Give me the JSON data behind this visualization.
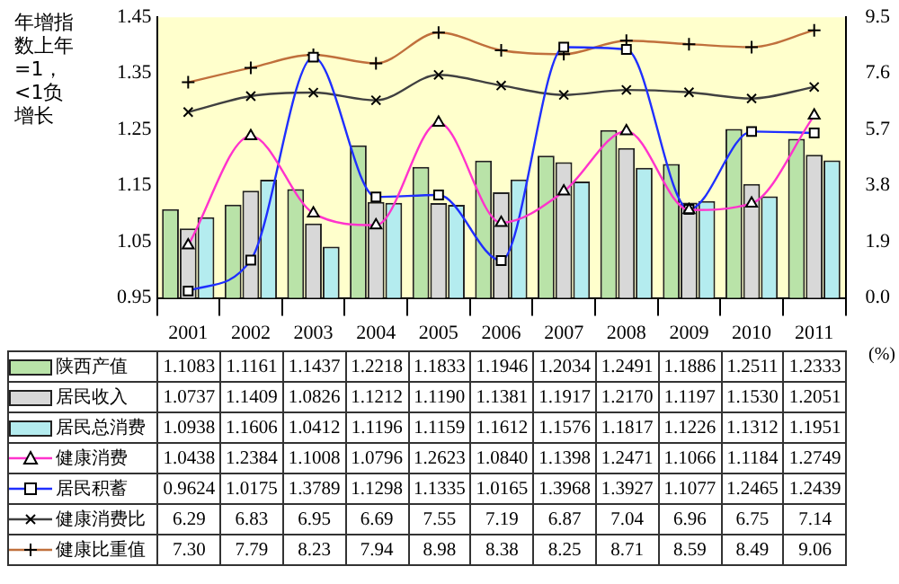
{
  "chart_data": {
    "type": "bar",
    "ylabel": "年增指数上年=1，<1负增长",
    "y2label": "(%)",
    "categories": [
      "2001",
      "2002",
      "2003",
      "2004",
      "2005",
      "2006",
      "2007",
      "2008",
      "2009",
      "2010",
      "2011"
    ],
    "ylim": [
      0.95,
      1.45
    ],
    "yticks": [
      0.95,
      1.05,
      1.15,
      1.25,
      1.35,
      1.45
    ],
    "y2lim": [
      0,
      9.5
    ],
    "y2ticks": [
      {
        "value": 0,
        "label": "0.0"
      },
      1.9,
      3.8,
      5.7,
      7.6,
      9.5
    ],
    "legend": "bottom",
    "series": [
      {
        "name": "陕西产值",
        "color": "#b9e3a8",
        "values": [
          1.1083,
          1.1161,
          1.1437,
          1.2218,
          1.1833,
          1.1946,
          1.2034,
          1.2491,
          1.1886,
          1.2511,
          1.2333
        ],
        "value_labels": [
          "1.1083",
          "1.1161",
          "1.1437",
          "1.2218",
          "1.1833",
          "1.1946",
          "1.2034",
          "1.2491",
          "1.1886",
          "1.2511",
          "1.2333"
        ]
      },
      {
        "name": "居民收入",
        "color": "#d8d8d8",
        "values": [
          1.0737,
          1.1409,
          1.0826,
          1.1212,
          1.119,
          1.1381,
          1.1917,
          1.217,
          1.1197,
          1.153,
          1.2051
        ],
        "value_labels": [
          "1.0737",
          "1.1409",
          "1.0826",
          "1.1212",
          "1.1190",
          "1.1381",
          "1.1917",
          "1.2170",
          "1.1197",
          "1.1530",
          "1.2051"
        ]
      },
      {
        "name": "居民总消费",
        "color": "#b4ecef",
        "values": [
          1.0938,
          1.1606,
          1.0412,
          1.1196,
          1.1159,
          1.1612,
          1.1576,
          1.1817,
          1.1226,
          1.1312,
          1.1951
        ],
        "value_labels": [
          "1.0938",
          "1.1606",
          "1.0412",
          "1.1196",
          "1.1159",
          "1.1612",
          "1.1576",
          "1.1817",
          "1.1226",
          "1.1312",
          "1.1951"
        ]
      },
      {
        "name": "健康消费",
        "type": "line",
        "marker": "triangle",
        "color": "#ff33cc",
        "values": [
          1.0438,
          1.2384,
          1.1008,
          1.0796,
          1.2623,
          1.084,
          1.1398,
          1.2471,
          1.1066,
          1.1184,
          1.2749
        ],
        "value_labels": [
          "1.0438",
          "1.2384",
          "1.1008",
          "1.0796",
          "1.2623",
          "1.0840",
          "1.1398",
          "1.2471",
          "1.1066",
          "1.1184",
          "1.2749"
        ]
      },
      {
        "name": "居民积蓄",
        "type": "line",
        "marker": "square",
        "color": "#1f2fff",
        "values": [
          0.9624,
          1.0175,
          1.3789,
          1.1298,
          1.1335,
          1.0165,
          1.3968,
          1.3927,
          1.1077,
          1.2465,
          1.2439
        ],
        "value_labels": [
          "0.9624",
          "1.0175",
          "1.3789",
          "1.1298",
          "1.1335",
          "1.0165",
          "1.3968",
          "1.3927",
          "1.1077",
          "1.2465",
          "1.2439"
        ]
      },
      {
        "name": "健康消费比",
        "type": "line",
        "marker": "cross",
        "axis": "y2",
        "color": "#404040",
        "values": [
          6.29,
          6.83,
          6.95,
          6.69,
          7.55,
          7.19,
          6.87,
          7.04,
          6.96,
          6.75,
          7.14
        ],
        "value_labels": [
          "6.29",
          "6.83",
          "6.95",
          "6.69",
          "7.55",
          "7.19",
          "6.87",
          "7.04",
          "6.96",
          "6.75",
          "7.14"
        ]
      },
      {
        "name": "健康比重值",
        "type": "line",
        "marker": "plus",
        "axis": "y2",
        "color": "#c0703c",
        "values": [
          7.3,
          7.79,
          8.23,
          7.94,
          8.98,
          8.38,
          8.25,
          8.71,
          8.59,
          8.49,
          9.06
        ],
        "value_labels": [
          "7.30",
          "7.79",
          "8.23",
          "7.94",
          "8.98",
          "8.38",
          "8.25",
          "8.71",
          "8.59",
          "8.49",
          "9.06"
        ]
      }
    ]
  }
}
